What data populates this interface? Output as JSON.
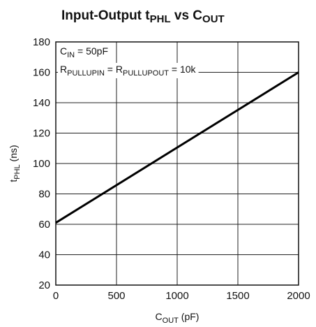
{
  "chart_data": {
    "type": "line",
    "title": [
      "Input-Output t",
      "PHL",
      " vs C",
      "OUT"
    ],
    "xlabel": [
      "C",
      "OUT",
      " (pF)"
    ],
    "ylabel": [
      "t",
      "PHL",
      " (ns)"
    ],
    "annotations": [
      [
        "C",
        "IN",
        " = 50pF"
      ],
      [
        "R",
        "PULLUPIN",
        " = R",
        "PULLUPOUT",
        " = 10k"
      ]
    ],
    "x": [
      0,
      2000
    ],
    "series": [
      {
        "color": "#000000",
        "values": [
          61,
          160
        ]
      }
    ],
    "xlim": [
      0,
      2000
    ],
    "xticks": [
      0,
      500,
      1000,
      1500,
      2000
    ],
    "ylim": [
      20,
      180
    ],
    "yticks": [
      20,
      40,
      60,
      80,
      100,
      120,
      140,
      160,
      180
    ],
    "grid": true
  }
}
